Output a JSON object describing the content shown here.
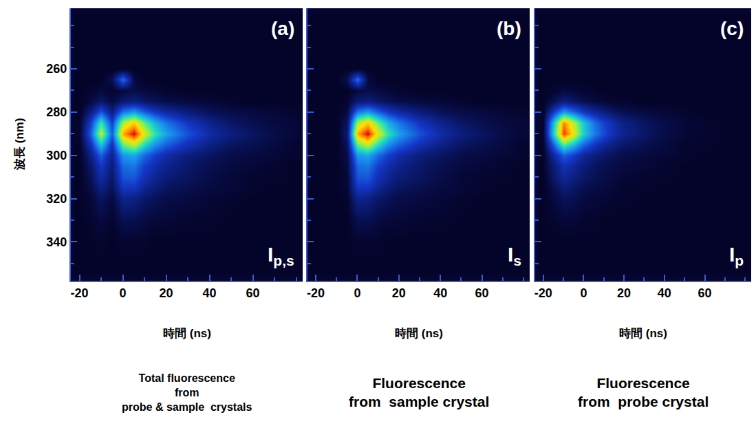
{
  "chart_data": [
    {
      "type": "heatmap",
      "panel": "(a)",
      "label": "I",
      "label_sub": "p,s",
      "caption": [
        "Total fluorescence",
        "from",
        "probe & sample  crystals"
      ],
      "xlabel": "時間 (ns)",
      "ylabel": "波長 (nm)",
      "xlim": [
        -24,
        83
      ],
      "ylim": [
        358,
        232
      ],
      "xticks": [
        -20,
        0,
        20,
        40,
        60
      ],
      "yticks": [
        260,
        280,
        300,
        320,
        340
      ],
      "zlim": [
        0,
        100
      ],
      "x": [
        -20,
        -15,
        -10,
        -5,
        0,
        5,
        10,
        15,
        20,
        30,
        40,
        50,
        60,
        70,
        80
      ],
      "y": [
        240,
        250,
        260,
        265,
        270,
        275,
        280,
        285,
        290,
        295,
        300,
        305,
        310,
        315,
        320,
        330,
        340,
        350
      ],
      "z": [
        [
          3,
          3,
          3,
          3,
          3,
          3,
          3,
          3,
          3,
          3,
          3,
          3,
          3,
          3,
          3
        ],
        [
          3,
          3,
          3,
          3,
          3,
          3,
          3,
          3,
          3,
          3,
          3,
          3,
          3,
          3,
          3
        ],
        [
          3,
          3,
          3,
          3,
          3,
          3,
          3,
          3,
          3,
          3,
          3,
          3,
          3,
          3,
          3
        ],
        [
          3,
          3,
          3,
          8,
          35,
          6,
          3,
          3,
          3,
          3,
          3,
          3,
          3,
          3,
          3
        ],
        [
          3,
          4,
          6,
          4,
          6,
          7,
          6,
          5,
          4,
          3,
          3,
          3,
          3,
          3,
          3
        ],
        [
          3,
          6,
          11,
          6,
          12,
          14,
          11,
          9,
          7,
          6,
          5,
          4,
          3,
          3,
          3
        ],
        [
          3,
          14,
          30,
          14,
          36,
          42,
          32,
          24,
          19,
          13,
          9,
          7,
          6,
          5,
          4
        ],
        [
          4,
          26,
          58,
          26,
          70,
          82,
          62,
          46,
          36,
          24,
          16,
          11,
          8,
          6,
          5
        ],
        [
          4,
          32,
          72,
          32,
          86,
          100,
          76,
          56,
          44,
          30,
          20,
          14,
          10,
          7,
          5
        ],
        [
          3,
          22,
          50,
          22,
          62,
          72,
          54,
          40,
          32,
          22,
          15,
          10,
          8,
          6,
          4
        ],
        [
          3,
          15,
          32,
          16,
          42,
          45,
          34,
          26,
          20,
          14,
          10,
          7,
          6,
          5,
          4
        ],
        [
          3,
          11,
          24,
          13,
          34,
          36,
          26,
          20,
          16,
          11,
          8,
          6,
          5,
          4,
          3
        ],
        [
          3,
          9,
          20,
          11,
          30,
          31,
          22,
          17,
          13,
          10,
          7,
          5,
          4,
          4,
          3
        ],
        [
          3,
          7,
          15,
          9,
          24,
          24,
          17,
          13,
          10,
          8,
          6,
          5,
          4,
          3,
          3
        ],
        [
          3,
          5,
          10,
          6,
          16,
          15,
          11,
          9,
          7,
          6,
          5,
          4,
          3,
          3,
          3
        ],
        [
          3,
          4,
          6,
          4,
          8,
          8,
          6,
          5,
          5,
          4,
          4,
          3,
          3,
          3,
          3
        ],
        [
          3,
          3,
          4,
          3,
          4,
          4,
          4,
          3,
          3,
          3,
          3,
          3,
          3,
          3,
          3
        ],
        [
          3,
          3,
          3,
          3,
          3,
          3,
          3,
          3,
          3,
          3,
          3,
          3,
          3,
          3,
          3
        ]
      ]
    },
    {
      "type": "heatmap",
      "panel": "(b)",
      "label": "I",
      "label_sub": "s",
      "caption": [
        "Fluorescence",
        "from  sample crystal"
      ],
      "xlabel": "時間 (ns)",
      "tick_labels": "x",
      "xlim": [
        -24,
        83
      ],
      "ylim": [
        358,
        232
      ],
      "xticks": [
        -20,
        0,
        20,
        40,
        60
      ],
      "yticks": [
        260,
        280,
        300,
        320,
        340
      ],
      "zlim": [
        0,
        100
      ],
      "x": [
        -20,
        -15,
        -10,
        -5,
        0,
        5,
        10,
        15,
        20,
        30,
        40,
        50,
        60,
        70,
        80
      ],
      "y": [
        240,
        250,
        260,
        265,
        270,
        275,
        280,
        285,
        290,
        295,
        300,
        305,
        310,
        315,
        320,
        330,
        340,
        350
      ],
      "z": [
        [
          3,
          3,
          3,
          3,
          3,
          3,
          3,
          3,
          3,
          3,
          3,
          3,
          3,
          3,
          3
        ],
        [
          3,
          3,
          3,
          3,
          3,
          3,
          3,
          3,
          3,
          3,
          3,
          3,
          3,
          3,
          3
        ],
        [
          3,
          3,
          3,
          3,
          3,
          3,
          3,
          3,
          3,
          3,
          3,
          3,
          3,
          3,
          3
        ],
        [
          3,
          3,
          3,
          8,
          35,
          6,
          3,
          3,
          3,
          3,
          3,
          3,
          3,
          3,
          3
        ],
        [
          3,
          3,
          3,
          3,
          6,
          7,
          6,
          5,
          4,
          3,
          3,
          3,
          3,
          3,
          3
        ],
        [
          3,
          3,
          3,
          4,
          12,
          14,
          11,
          9,
          7,
          6,
          5,
          4,
          3,
          3,
          3
        ],
        [
          3,
          3,
          3,
          6,
          36,
          42,
          32,
          24,
          19,
          13,
          9,
          7,
          6,
          5,
          4
        ],
        [
          3,
          3,
          3,
          10,
          70,
          82,
          62,
          46,
          36,
          24,
          16,
          11,
          8,
          6,
          5
        ],
        [
          3,
          3,
          3,
          12,
          86,
          100,
          76,
          56,
          44,
          30,
          20,
          14,
          10,
          7,
          5
        ],
        [
          3,
          3,
          3,
          9,
          62,
          72,
          54,
          40,
          32,
          22,
          15,
          10,
          8,
          6,
          4
        ],
        [
          3,
          3,
          3,
          7,
          42,
          45,
          34,
          26,
          20,
          14,
          10,
          7,
          6,
          5,
          4
        ],
        [
          3,
          3,
          3,
          6,
          34,
          36,
          26,
          20,
          16,
          11,
          8,
          6,
          5,
          4,
          3
        ],
        [
          3,
          3,
          3,
          5,
          30,
          31,
          22,
          17,
          13,
          10,
          7,
          5,
          4,
          4,
          3
        ],
        [
          3,
          3,
          3,
          5,
          24,
          24,
          17,
          13,
          10,
          8,
          6,
          5,
          4,
          3,
          3
        ],
        [
          3,
          3,
          3,
          4,
          16,
          15,
          11,
          9,
          7,
          6,
          5,
          4,
          3,
          3,
          3
        ],
        [
          3,
          3,
          3,
          3,
          8,
          8,
          6,
          5,
          5,
          4,
          4,
          3,
          3,
          3,
          3
        ],
        [
          3,
          3,
          3,
          3,
          4,
          4,
          4,
          3,
          3,
          3,
          3,
          3,
          3,
          3,
          3
        ],
        [
          3,
          3,
          3,
          3,
          3,
          3,
          3,
          3,
          3,
          3,
          3,
          3,
          3,
          3,
          3
        ]
      ]
    },
    {
      "type": "heatmap",
      "panel": "(c)",
      "label": "I",
      "label_sub": "p",
      "caption": [
        "Fluorescence",
        "from  probe crystal"
      ],
      "xlabel": "時間 (ns)",
      "tick_labels": "x",
      "xlim": [
        -24,
        83
      ],
      "ylim": [
        358,
        232
      ],
      "xticks": [
        -20,
        0,
        20,
        40,
        60
      ],
      "yticks": [
        260,
        280,
        300,
        320,
        340
      ],
      "zlim": [
        0,
        100
      ],
      "x": [
        -20,
        -15,
        -10,
        -5,
        0,
        5,
        10,
        15,
        20,
        30,
        40,
        50,
        60,
        70,
        80
      ],
      "y": [
        240,
        250,
        260,
        265,
        270,
        275,
        280,
        285,
        290,
        295,
        300,
        305,
        310,
        315,
        320,
        330,
        340,
        350
      ],
      "z": [
        [
          3,
          3,
          3,
          3,
          3,
          3,
          3,
          3,
          3,
          3,
          3,
          3,
          3,
          3,
          3
        ],
        [
          3,
          3,
          3,
          3,
          3,
          3,
          3,
          3,
          3,
          3,
          3,
          3,
          3,
          3,
          3
        ],
        [
          3,
          3,
          3,
          3,
          3,
          3,
          3,
          3,
          3,
          3,
          3,
          3,
          3,
          3,
          3
        ],
        [
          3,
          3,
          3,
          3,
          3,
          3,
          3,
          3,
          3,
          3,
          3,
          3,
          3,
          3,
          3
        ],
        [
          3,
          4,
          6,
          5,
          4,
          4,
          3,
          3,
          3,
          3,
          3,
          3,
          3,
          3,
          3
        ],
        [
          3,
          8,
          14,
          11,
          8,
          6,
          5,
          4,
          4,
          3,
          3,
          3,
          3,
          3,
          3
        ],
        [
          3,
          24,
          42,
          34,
          24,
          18,
          14,
          10,
          8,
          6,
          5,
          4,
          3,
          3,
          3
        ],
        [
          4,
          48,
          90,
          72,
          50,
          36,
          27,
          20,
          15,
          10,
          7,
          5,
          4,
          3,
          3
        ],
        [
          4,
          52,
          96,
          78,
          52,
          38,
          29,
          21,
          16,
          11,
          7,
          5,
          4,
          3,
          3
        ],
        [
          3,
          32,
          60,
          48,
          33,
          24,
          18,
          14,
          11,
          8,
          6,
          4,
          4,
          3,
          3
        ],
        [
          3,
          18,
          32,
          26,
          18,
          14,
          11,
          9,
          7,
          6,
          5,
          4,
          3,
          3,
          3
        ],
        [
          3,
          13,
          22,
          18,
          13,
          10,
          8,
          7,
          6,
          5,
          4,
          3,
          3,
          3,
          3
        ],
        [
          3,
          11,
          18,
          15,
          11,
          9,
          7,
          6,
          5,
          4,
          4,
          3,
          3,
          3,
          3
        ],
        [
          3,
          8,
          13,
          11,
          8,
          7,
          6,
          5,
          4,
          4,
          3,
          3,
          3,
          3,
          3
        ],
        [
          3,
          6,
          9,
          8,
          6,
          5,
          5,
          4,
          4,
          3,
          3,
          3,
          3,
          3,
          3
        ],
        [
          3,
          4,
          5,
          5,
          4,
          4,
          3,
          3,
          3,
          3,
          3,
          3,
          3,
          3,
          3
        ],
        [
          3,
          3,
          3,
          3,
          3,
          3,
          3,
          3,
          3,
          3,
          3,
          3,
          3,
          3,
          3
        ],
        [
          3,
          3,
          3,
          3,
          3,
          3,
          3,
          3,
          3,
          3,
          3,
          3,
          3,
          3,
          3
        ]
      ]
    }
  ]
}
